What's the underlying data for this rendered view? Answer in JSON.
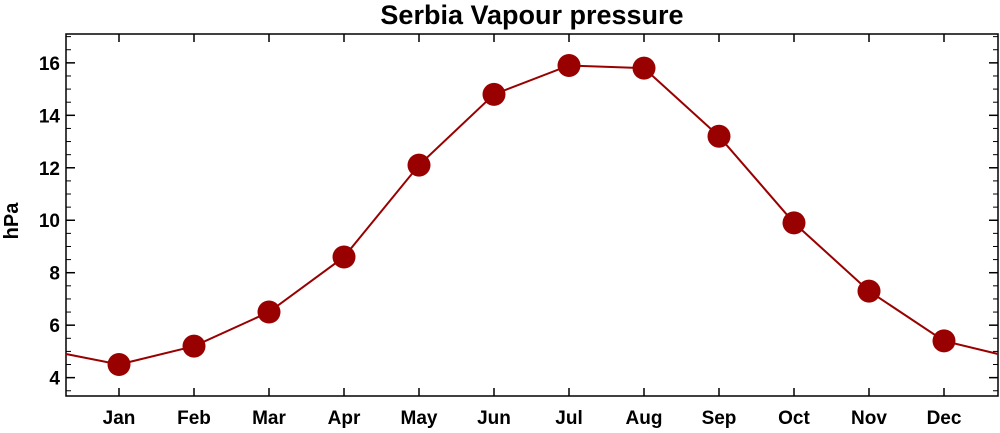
{
  "chart_data": {
    "type": "line",
    "title": "Serbia Vapour pressure",
    "xlabel": "",
    "ylabel": "hPa",
    "categories": [
      "Jan",
      "Feb",
      "Mar",
      "Apr",
      "May",
      "Jun",
      "Jul",
      "Aug",
      "Sep",
      "Oct",
      "Nov",
      "Dec"
    ],
    "series": [
      {
        "values": [
          4.5,
          5.2,
          6.5,
          8.6,
          12.1,
          14.8,
          15.9,
          15.8,
          13.2,
          9.9,
          7.3,
          5.4
        ]
      }
    ],
    "yticks": [
      4,
      6,
      8,
      10,
      12,
      14,
      16
    ],
    "ylim": [
      3.3,
      17.1
    ],
    "edge_values": {
      "before_jan": 4.9,
      "after_dec": 4.9
    },
    "grid": false,
    "colors": {
      "series": "#990000",
      "axis": "#000000"
    }
  }
}
